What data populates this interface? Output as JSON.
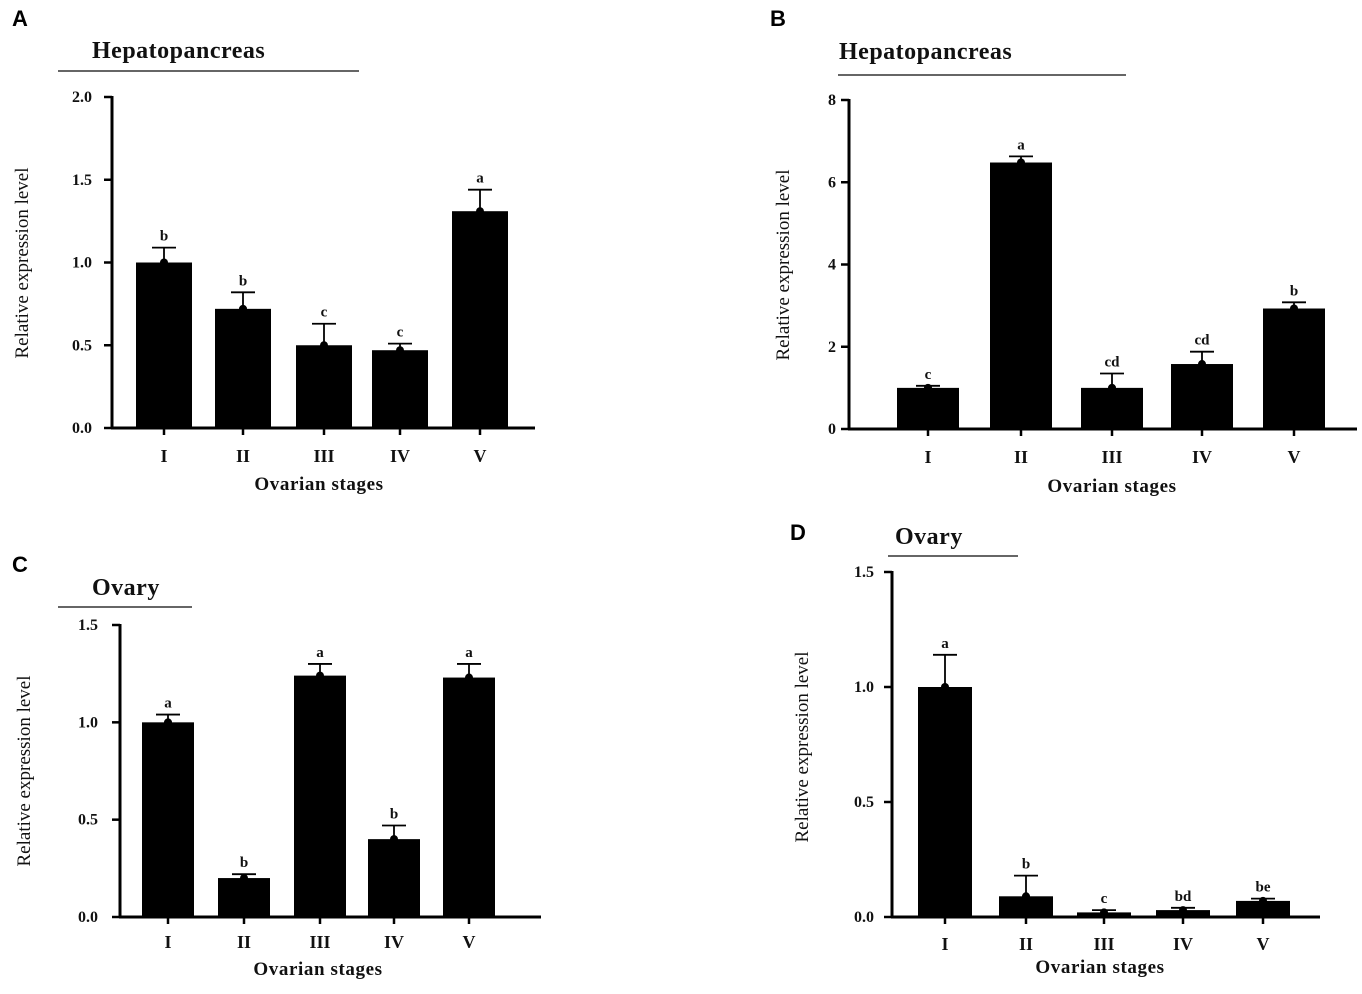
{
  "chart_data": [
    {
      "panel": "A",
      "type": "bar",
      "title": "Hepatopancreas",
      "xlabel": "Ovarian stages",
      "ylabel": "Relative expression level",
      "categories": [
        "I",
        "II",
        "III",
        "IV",
        "V"
      ],
      "values": [
        1.0,
        0.72,
        0.5,
        0.47,
        1.31
      ],
      "errors": [
        0.09,
        0.1,
        0.13,
        0.04,
        0.13
      ],
      "significance": [
        "b",
        "b",
        "c",
        "c",
        "a"
      ],
      "ylim": [
        0,
        2.0
      ],
      "yticks": [
        0,
        0.5,
        1.0,
        1.5,
        2.0
      ],
      "ytick_labels": [
        "0.0",
        "0.5",
        "1.0",
        "1.5",
        "2.0"
      ],
      "bar_color": "#000000"
    },
    {
      "panel": "B",
      "type": "bar",
      "title": "Hepatopancreas",
      "xlabel": "Ovarian stages",
      "ylabel": "Relative expression level",
      "categories": [
        "I",
        "II",
        "III",
        "IV",
        "V"
      ],
      "values": [
        1.0,
        6.48,
        1.0,
        1.58,
        2.93
      ],
      "errors": [
        0.05,
        0.15,
        0.35,
        0.3,
        0.15
      ],
      "significance": [
        "c",
        "a",
        "cd",
        "cd",
        "b"
      ],
      "ylim": [
        0,
        8
      ],
      "yticks": [
        0,
        2,
        4,
        6,
        8
      ],
      "ytick_labels": [
        "0",
        "2",
        "4",
        "6",
        "8"
      ],
      "bar_color": "#000000"
    },
    {
      "panel": "C",
      "type": "bar",
      "title": "Ovary",
      "xlabel": "Ovarian stages",
      "ylabel": "Relative expression level",
      "categories": [
        "I",
        "II",
        "III",
        "IV",
        "V"
      ],
      "values": [
        1.0,
        0.2,
        1.24,
        0.4,
        1.23
      ],
      "errors": [
        0.04,
        0.02,
        0.06,
        0.07,
        0.07
      ],
      "significance": [
        "a",
        "b",
        "a",
        "b",
        "a"
      ],
      "ylim": [
        0,
        1.5
      ],
      "yticks": [
        0,
        0.5,
        1.0,
        1.5
      ],
      "ytick_labels": [
        "0.0",
        "0.5",
        "1.0",
        "1.5"
      ],
      "bar_color": "#000000"
    },
    {
      "panel": "D",
      "type": "bar",
      "title": "Ovary",
      "xlabel": "Ovarian stages",
      "ylabel": "Relative expression level",
      "categories": [
        "I",
        "II",
        "III",
        "IV",
        "V"
      ],
      "values": [
        1.0,
        0.09,
        0.02,
        0.03,
        0.07
      ],
      "errors": [
        0.14,
        0.09,
        0.01,
        0.01,
        0.01
      ],
      "significance": [
        "a",
        "b",
        "c",
        "bd",
        "be"
      ],
      "ylim": [
        0,
        1.5
      ],
      "yticks": [
        0,
        0.5,
        1.0,
        1.5
      ],
      "ytick_labels": [
        "0.0",
        "0.5",
        "1.0",
        "1.5"
      ],
      "bar_color": "#000000"
    }
  ]
}
